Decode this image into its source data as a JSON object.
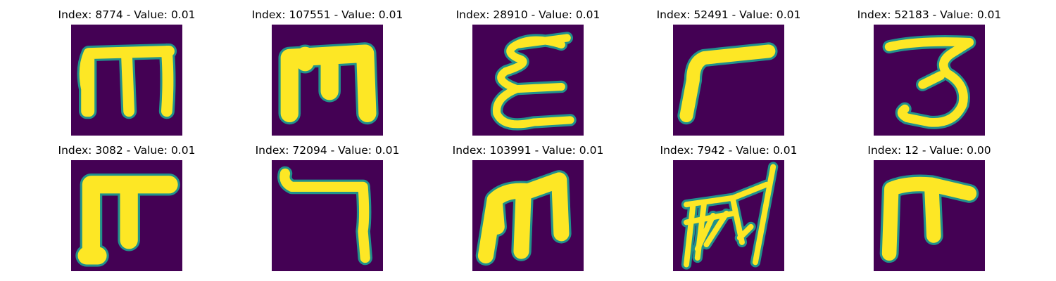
{
  "figure": {
    "panels": [
      {
        "title": "Index: 8774 - Value: 0.01",
        "glyph": "glyph-m-icon"
      },
      {
        "title": "Index: 107551 - Value: 0.01",
        "glyph": "glyph-m-bold-icon"
      },
      {
        "title": "Index: 28910 - Value: 0.01",
        "glyph": "glyph-epsilon-icon"
      },
      {
        "title": "Index: 52491 - Value: 0.01",
        "glyph": "glyph-gamma-icon"
      },
      {
        "title": "Index: 52183 - Value: 0.01",
        "glyph": "glyph-three-icon"
      },
      {
        "title": "Index: 3082 - Value: 0.01",
        "glyph": "glyph-pi-icon"
      },
      {
        "title": "Index: 72094 - Value: 0.01",
        "glyph": "glyph-hook-icon"
      },
      {
        "title": "Index: 103991 - Value: 0.01",
        "glyph": "glyph-m-slanted-icon"
      },
      {
        "title": "Index: 7942 - Value: 0.01",
        "glyph": "glyph-scribble-icon"
      },
      {
        "title": "Index: 12 - Value: 0.00",
        "glyph": "glyph-hook-t-icon"
      }
    ],
    "colors": {
      "background": "#440154",
      "stroke": "#fde725",
      "edge": "#21918c"
    }
  }
}
